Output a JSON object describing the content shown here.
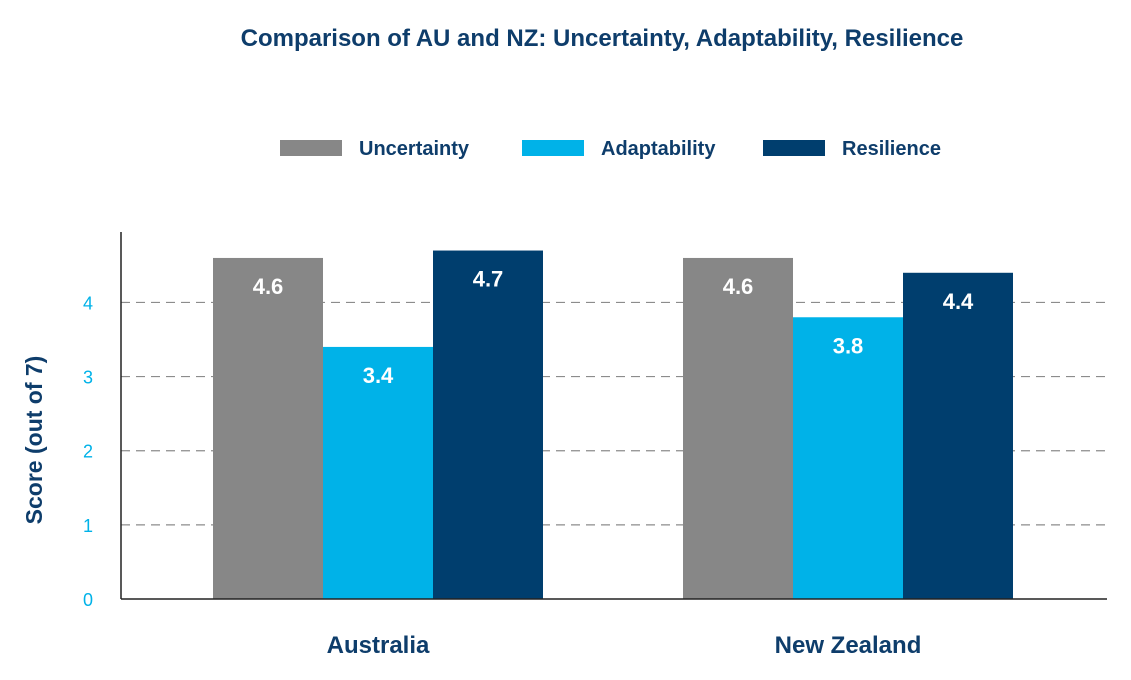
{
  "chart_data": {
    "type": "bar",
    "title": "Comparison of AU and NZ: Uncertainty, Adaptability, Resilience",
    "xlabel": "",
    "ylabel": "Score (out of 7)",
    "ylim": [
      0,
      4.95
    ],
    "yticks": [
      0,
      1,
      2,
      3,
      4
    ],
    "grid": true,
    "legend_position": "top-center",
    "categories": [
      "Australia",
      "New Zealand"
    ],
    "series": [
      {
        "name": "Uncertainty",
        "color": "#878787",
        "values": [
          4.6,
          4.6
        ],
        "labels": [
          "4.6",
          "4.6"
        ]
      },
      {
        "name": "Adaptability",
        "color": "#00b2e8",
        "values": [
          3.4,
          3.8
        ],
        "labels": [
          "3.4",
          "3.8"
        ]
      },
      {
        "name": "Resilience",
        "color": "#003e6e",
        "values": [
          4.7,
          4.4
        ],
        "labels": [
          "4.7",
          "4.4"
        ]
      }
    ]
  },
  "colors": {
    "title": "#0e3d6b",
    "tick": "#00b2e8",
    "axis": "#222222",
    "grid": "#8c8c8c",
    "value_label": "#ffffff"
  }
}
